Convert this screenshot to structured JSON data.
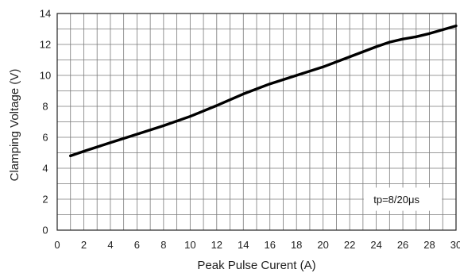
{
  "chart_data": {
    "type": "line",
    "xlabel": "Peak  Pulse Curent (A)",
    "ylabel": "Clamping Voltage (V)",
    "xlim": [
      0,
      30
    ],
    "ylim": [
      0,
      14
    ],
    "x_ticks": [
      0,
      2,
      4,
      6,
      8,
      10,
      12,
      14,
      16,
      18,
      20,
      22,
      24,
      26,
      28,
      30
    ],
    "y_ticks": [
      0,
      2,
      4,
      6,
      8,
      10,
      12,
      14
    ],
    "x_minor_step": 1,
    "y_minor_step": 1,
    "grid": true,
    "annotation": "tp=8/20μs",
    "annotation_position": "bottom-right",
    "line_color": "#000000",
    "grid_color": "#7a7a7a",
    "series": [
      {
        "x": [
          1,
          2,
          4,
          6,
          8,
          10,
          12,
          14,
          16,
          18,
          20,
          22,
          24,
          25,
          26,
          27,
          28,
          30
        ],
        "values": [
          4.8,
          5.1,
          5.65,
          6.2,
          6.75,
          7.35,
          8.05,
          8.8,
          9.45,
          10.0,
          10.55,
          11.2,
          11.85,
          12.15,
          12.35,
          12.5,
          12.7,
          13.2
        ]
      }
    ]
  }
}
